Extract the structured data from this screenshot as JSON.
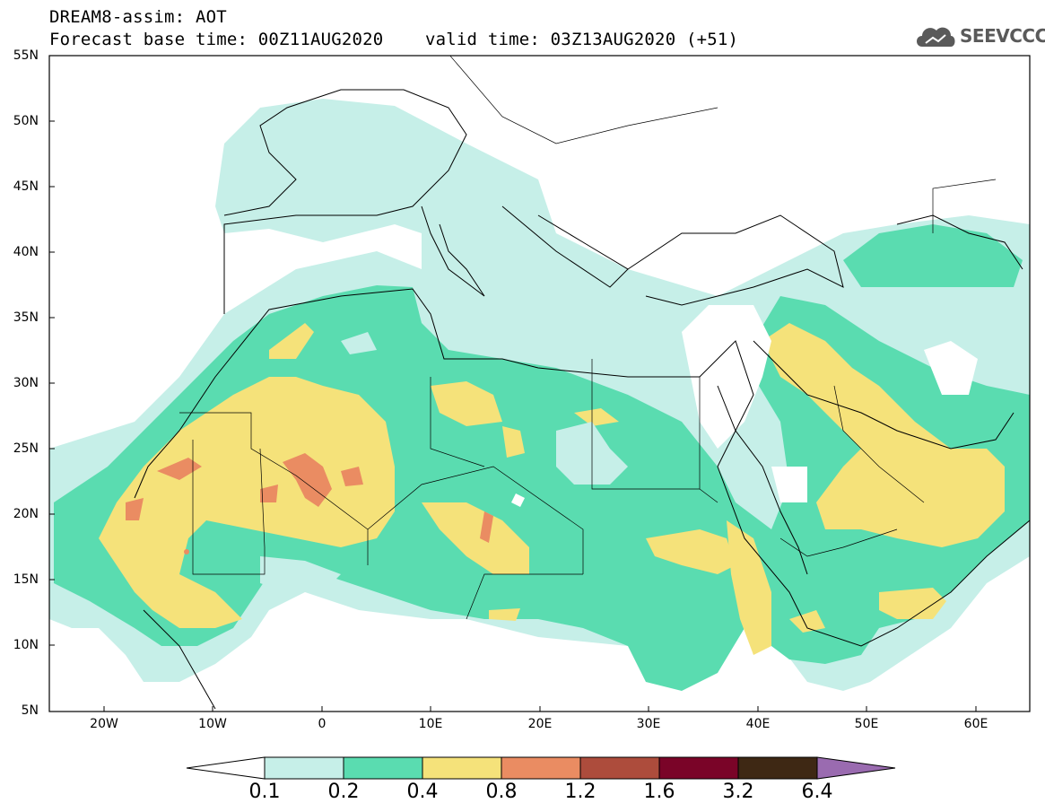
{
  "header": {
    "line1": "DREAM8-assim: AOT",
    "line2": "Forecast base time: 00Z11AUG2020    valid time: 03Z13AUG2020 (+51)"
  },
  "logo": {
    "text": "SEEVCCC",
    "icon": "cloud-icon"
  },
  "map": {
    "lon_range": [
      -25,
      65
    ],
    "lat_range": [
      5,
      55
    ],
    "lat_labels": [
      "55N",
      "50N",
      "45N",
      "40N",
      "35N",
      "30N",
      "25N",
      "20N",
      "15N",
      "10N",
      "5N"
    ],
    "lon_labels": [
      "20W",
      "10W",
      "0",
      "10E",
      "20E",
      "30E",
      "40E",
      "50E",
      "60E"
    ]
  },
  "colorbar": {
    "labels": [
      "0.1",
      "0.2",
      "0.4",
      "0.8",
      "1.2",
      "1.6",
      "3.2",
      "6.4"
    ],
    "colors": [
      "#ffffff",
      "#c6efe8",
      "#5adcb0",
      "#f5e27a",
      "#ea8c62",
      "#ad4c3c",
      "#7a0428",
      "#3e2814",
      "#9a6bb0"
    ]
  }
}
